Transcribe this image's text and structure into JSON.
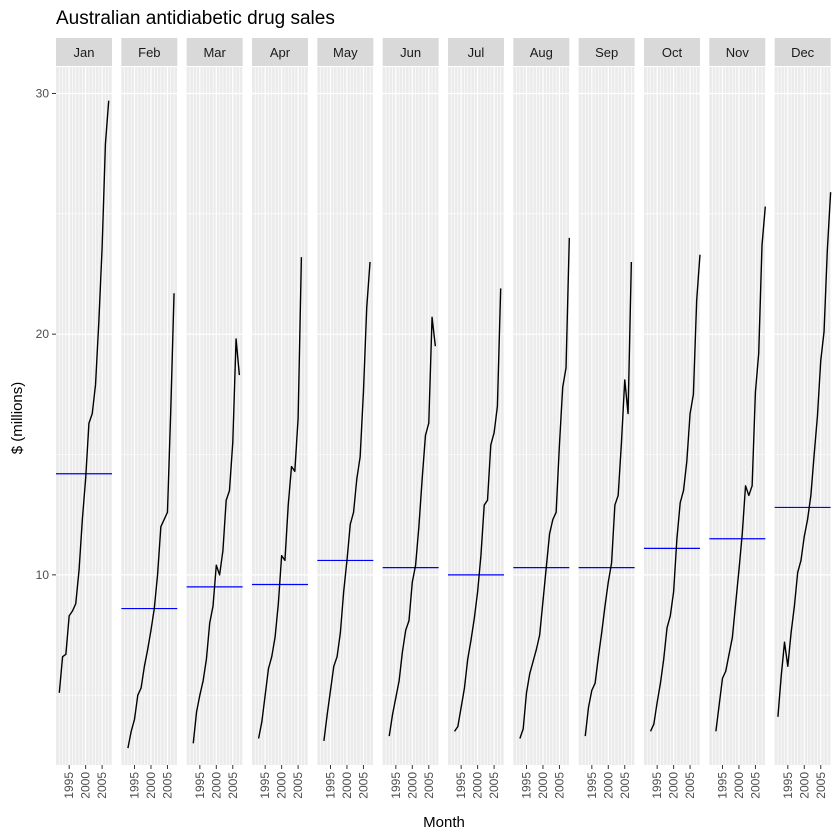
{
  "chart_data": {
    "type": "line",
    "title": "Australian antidiabetic drug sales",
    "xlabel": "Month",
    "ylabel": "$ (millions)",
    "facets": [
      "Jan",
      "Feb",
      "Mar",
      "Apr",
      "May",
      "Jun",
      "Jul",
      "Aug",
      "Sep",
      "Oct",
      "Nov",
      "Dec"
    ],
    "xlim": [
      1991,
      2008
    ],
    "x_ticks": [
      1995,
      2000,
      2005
    ],
    "x_tick_labels": [
      "1995",
      "2000",
      "2005"
    ],
    "ylim": [
      2.1,
      31.1
    ],
    "y_ticks": [
      10,
      20,
      30
    ],
    "y_tick_labels": [
      "10",
      "20",
      "30"
    ],
    "grid": true,
    "line_color": "#000000",
    "mean_line_color": "#0000ff",
    "panels": [
      {
        "month": "Jan",
        "years": [
          1992,
          1993,
          1994,
          1995,
          1996,
          1997,
          1998,
          1999,
          2000,
          2001,
          2002,
          2003,
          2004,
          2005,
          2006,
          2007,
          2008
        ],
        "values": [
          5.1,
          6.6,
          6.7,
          8.3,
          8.5,
          8.8,
          10.2,
          12.3,
          14.0,
          16.3,
          16.7,
          17.9,
          20.5,
          23.6,
          27.9,
          29.7,
          null
        ],
        "mean": 14.2
      },
      {
        "month": "Feb",
        "years": [
          1992,
          1993,
          1994,
          1995,
          1996,
          1997,
          1998,
          1999,
          2000,
          2001,
          2002,
          2003,
          2004,
          2005,
          2006,
          2007,
          2008
        ],
        "values": [
          null,
          2.8,
          3.5,
          4.0,
          5.0,
          5.3,
          6.2,
          6.9,
          7.7,
          8.6,
          10.0,
          12.0,
          12.3,
          12.6,
          16.8,
          21.7,
          null
        ],
        "mean": 8.6
      },
      {
        "month": "Mar",
        "years": [
          1992,
          1993,
          1994,
          1995,
          1996,
          1997,
          1998,
          1999,
          2000,
          2001,
          2002,
          2003,
          2004,
          2005,
          2006,
          2007,
          2008
        ],
        "values": [
          null,
          3.0,
          4.3,
          5.0,
          5.6,
          6.5,
          8.0,
          8.7,
          10.4,
          10.0,
          11.0,
          13.1,
          13.5,
          15.5,
          19.8,
          18.3,
          null
        ],
        "mean": 9.5
      },
      {
        "month": "Apr",
        "years": [
          1992,
          1993,
          1994,
          1995,
          1996,
          1997,
          1998,
          1999,
          2000,
          2001,
          2002,
          2003,
          2004,
          2005,
          2006,
          2007,
          2008
        ],
        "values": [
          null,
          3.2,
          3.9,
          5.0,
          6.1,
          6.6,
          7.4,
          8.8,
          10.8,
          10.6,
          12.9,
          14.5,
          14.3,
          16.5,
          23.2,
          null,
          null
        ],
        "mean": 9.6
      },
      {
        "month": "May",
        "years": [
          1992,
          1993,
          1994,
          1995,
          1996,
          1997,
          1998,
          1999,
          2000,
          2001,
          2002,
          2003,
          2004,
          2005,
          2006,
          2007,
          2008
        ],
        "values": [
          null,
          3.1,
          4.2,
          5.2,
          6.2,
          6.6,
          7.6,
          9.3,
          10.6,
          12.1,
          12.6,
          14.0,
          14.9,
          17.6,
          21.1,
          23.0,
          null
        ],
        "mean": 10.6
      },
      {
        "month": "Jun",
        "years": [
          1992,
          1993,
          1994,
          1995,
          1996,
          1997,
          1998,
          1999,
          2000,
          2001,
          2002,
          2003,
          2004,
          2005,
          2006,
          2007,
          2008
        ],
        "values": [
          null,
          3.3,
          4.2,
          4.9,
          5.6,
          6.8,
          7.7,
          8.1,
          9.7,
          10.4,
          12.0,
          14.0,
          15.8,
          16.3,
          20.7,
          19.5,
          null
        ],
        "mean": 10.3
      },
      {
        "month": "Jul",
        "years": [
          1992,
          1993,
          1994,
          1995,
          1996,
          1997,
          1998,
          1999,
          2000,
          2001,
          2002,
          2003,
          2004,
          2005,
          2006,
          2007,
          2008
        ],
        "values": [
          null,
          3.5,
          3.7,
          4.5,
          5.3,
          6.5,
          7.3,
          8.2,
          9.3,
          10.8,
          12.9,
          13.1,
          15.4,
          15.9,
          17.0,
          21.9,
          null
        ],
        "mean": 10.0
      },
      {
        "month": "Aug",
        "years": [
          1992,
          1993,
          1994,
          1995,
          1996,
          1997,
          1998,
          1999,
          2000,
          2001,
          2002,
          2003,
          2004,
          2005,
          2006,
          2007,
          2008
        ],
        "values": [
          null,
          3.2,
          3.6,
          5.1,
          5.9,
          6.4,
          6.9,
          7.5,
          8.9,
          10.3,
          11.7,
          12.3,
          12.6,
          15.4,
          17.8,
          18.6,
          24.0
        ],
        "mean": 10.3
      },
      {
        "month": "Sep",
        "years": [
          1992,
          1993,
          1994,
          1995,
          1996,
          1997,
          1998,
          1999,
          2000,
          2001,
          2002,
          2003,
          2004,
          2005,
          2006,
          2007,
          2008
        ],
        "values": [
          null,
          3.3,
          4.5,
          5.2,
          5.5,
          6.6,
          7.6,
          8.7,
          9.7,
          10.5,
          12.9,
          13.3,
          15.5,
          18.1,
          16.7,
          23.0,
          null
        ],
        "mean": 10.3
      },
      {
        "month": "Oct",
        "years": [
          1992,
          1993,
          1994,
          1995,
          1996,
          1997,
          1998,
          1999,
          2000,
          2001,
          2002,
          2003,
          2004,
          2005,
          2006,
          2007,
          2008
        ],
        "values": [
          null,
          3.5,
          3.8,
          4.7,
          5.5,
          6.5,
          7.8,
          8.3,
          9.3,
          11.5,
          13.0,
          13.5,
          14.7,
          16.7,
          17.5,
          21.4,
          23.3
        ],
        "mean": 11.1
      },
      {
        "month": "Nov",
        "years": [
          1992,
          1993,
          1994,
          1995,
          1996,
          1997,
          1998,
          1999,
          2000,
          2001,
          2002,
          2003,
          2004,
          2005,
          2006,
          2007,
          2008
        ],
        "values": [
          null,
          3.5,
          4.6,
          5.7,
          6.0,
          6.7,
          7.4,
          8.8,
          10.2,
          11.7,
          13.7,
          13.3,
          13.7,
          17.6,
          19.2,
          23.7,
          25.3
        ],
        "mean": 11.5
      },
      {
        "month": "Dec",
        "years": [
          1992,
          1993,
          1994,
          1995,
          1996,
          1997,
          1998,
          1999,
          2000,
          2001,
          2002,
          2003,
          2004,
          2005,
          2006,
          2007,
          2008
        ],
        "values": [
          4.1,
          5.8,
          7.2,
          6.2,
          7.6,
          8.7,
          10.1,
          10.6,
          11.6,
          12.3,
          13.3,
          15.0,
          16.6,
          18.9,
          20.1,
          23.5,
          25.9
        ],
        "mean": 12.8
      }
    ]
  }
}
